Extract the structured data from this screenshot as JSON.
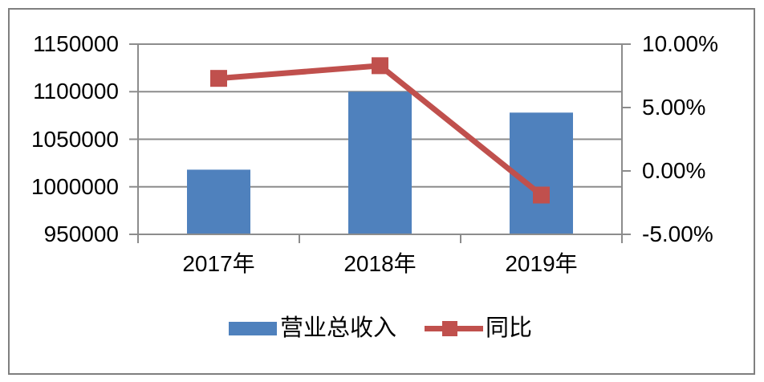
{
  "chart_data": {
    "type": "bar",
    "subtype": "combo-bar-line-dual-axis",
    "title": "",
    "categories": [
      "2017年",
      "2018年",
      "2019年"
    ],
    "series": [
      {
        "name": "营业总收入",
        "chart_type": "bar",
        "axis": "left",
        "color": "#4F81BD",
        "values": [
          1018000,
          1100000,
          1078000
        ]
      },
      {
        "name": "同比",
        "chart_type": "line",
        "axis": "right",
        "color": "#C0504D",
        "marker": "square",
        "values": [
          7.3,
          8.3,
          -1.9
        ],
        "value_format": "0.00%"
      }
    ],
    "left_axis": {
      "min": 950000,
      "max": 1150000,
      "step": 50000,
      "tick_labels": [
        "1150000",
        "1100000",
        "1050000",
        "1000000",
        "950000"
      ]
    },
    "right_axis": {
      "min": -5,
      "max": 10,
      "step": 5,
      "tick_labels": [
        "10.00%",
        "5.00%",
        "0.00%",
        "-5.00%"
      ]
    },
    "grid": true,
    "legend_position": "bottom",
    "colors": {
      "bar_blue": "#4F81BD",
      "line_red": "#C0504D",
      "grid_gray": "#8C8C8C",
      "border_gray": "#7F7F7F",
      "text_black": "#000000"
    }
  }
}
